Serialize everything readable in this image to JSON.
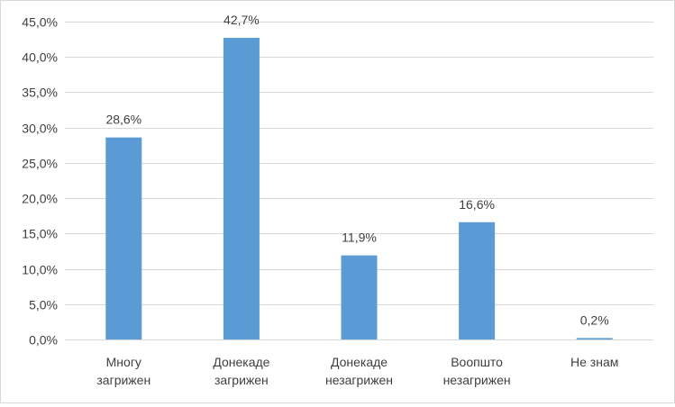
{
  "chart_data": {
    "type": "bar",
    "categories": [
      [
        "Многу",
        "загрижен"
      ],
      [
        "Донекаде",
        "загрижен"
      ],
      [
        "Донекаде",
        "незагрижен"
      ],
      [
        "Воопшто",
        "незагрижен"
      ],
      [
        "Не знам"
      ]
    ],
    "values": [
      28.6,
      42.7,
      11.9,
      16.6,
      0.2
    ],
    "data_labels": [
      "28,6%",
      "42,7%",
      "11,9%",
      "16,6%",
      "0,2%"
    ],
    "ylim": [
      0,
      45
    ],
    "y_ticks": [
      0,
      5,
      10,
      15,
      20,
      25,
      30,
      35,
      40,
      45
    ],
    "y_tick_labels": [
      "0,0%",
      "5,0%",
      "10,0%",
      "15,0%",
      "20,0%",
      "25,0%",
      "30,0%",
      "35,0%",
      "40,0%",
      "45,0%"
    ],
    "title": "",
    "xlabel": "",
    "ylabel": "",
    "grid": true,
    "legend": "none",
    "bar_color": "#5b9bd5",
    "grid_color": "#d9d9d9",
    "text_color": "#404040"
  }
}
